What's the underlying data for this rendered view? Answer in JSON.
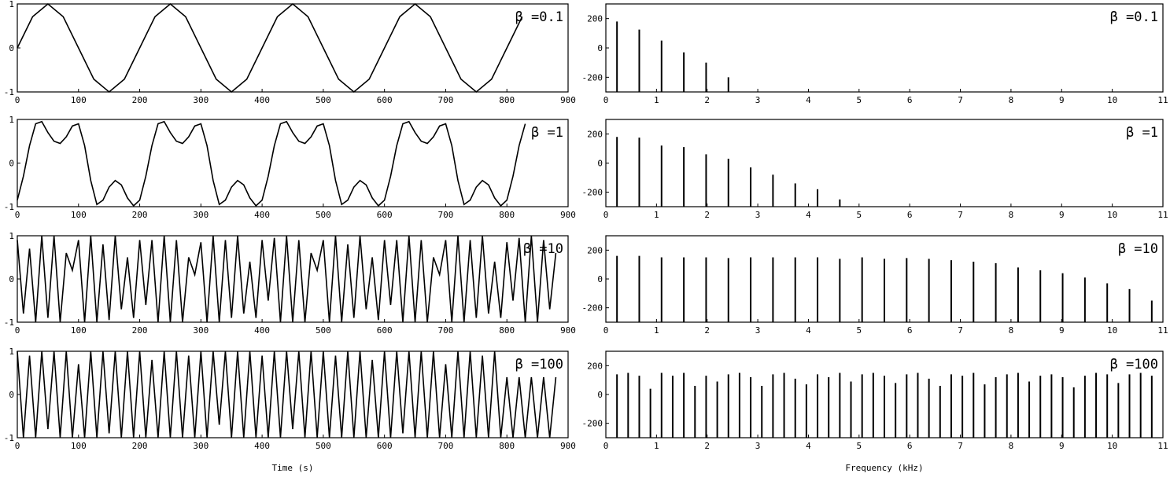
{
  "chart_data": [
    {
      "type": "line",
      "annotation": "β =0.1",
      "color": "#000000",
      "x": [
        0,
        25,
        50,
        75,
        100,
        125,
        150,
        175,
        200,
        225,
        250,
        275,
        300,
        325,
        350,
        375,
        400,
        425,
        450,
        475,
        500,
        525,
        550,
        575,
        600,
        625,
        650,
        675,
        700,
        725,
        750,
        775,
        800,
        825
      ],
      "values": [
        0,
        0.71,
        1,
        0.71,
        0,
        -0.71,
        -1,
        -0.71,
        0,
        0.71,
        1,
        0.71,
        0,
        -0.71,
        -1,
        -0.71,
        0,
        0.71,
        1,
        0.71,
        0,
        -0.71,
        -1,
        -0.71,
        0,
        0.71,
        1,
        0.71,
        0,
        -0.71,
        -1,
        -0.71,
        0,
        0.71
      ],
      "xlim": [
        0,
        900
      ],
      "ylim": [
        -1,
        1
      ],
      "xticks": [
        0,
        100,
        200,
        300,
        400,
        500,
        600,
        700,
        800,
        900
      ],
      "yticks": [
        -1,
        0,
        1
      ]
    },
    {
      "type": "line",
      "annotation": "β =1",
      "color": "#000000",
      "x": [
        0,
        10,
        20,
        30,
        40,
        50,
        60,
        70,
        80,
        90,
        100,
        110,
        120,
        130,
        140,
        150,
        160,
        170,
        180,
        190,
        200,
        210,
        220,
        230,
        240,
        250,
        260,
        270,
        280,
        290,
        300,
        310,
        320,
        330,
        340,
        350,
        360,
        370,
        380,
        390,
        400,
        410,
        420,
        430,
        440,
        450,
        460,
        470,
        480,
        490,
        500,
        510,
        520,
        530,
        540,
        550,
        560,
        570,
        580,
        590,
        600,
        610,
        620,
        630,
        640,
        650,
        660,
        670,
        680,
        690,
        700,
        710,
        720,
        730,
        740,
        750,
        760,
        770,
        780,
        790,
        800,
        810,
        820,
        830
      ],
      "values": [
        -0.85,
        -0.3,
        0.4,
        0.9,
        0.95,
        0.7,
        0.5,
        0.45,
        0.6,
        0.85,
        0.9,
        0.4,
        -0.4,
        -0.95,
        -0.85,
        -0.55,
        -0.4,
        -0.5,
        -0.8,
        -0.98,
        -0.85,
        -0.3,
        0.4,
        0.9,
        0.95,
        0.7,
        0.5,
        0.45,
        0.6,
        0.85,
        0.9,
        0.4,
        -0.4,
        -0.95,
        -0.85,
        -0.55,
        -0.4,
        -0.5,
        -0.8,
        -0.98,
        -0.85,
        -0.3,
        0.4,
        0.9,
        0.95,
        0.7,
        0.5,
        0.45,
        0.6,
        0.85,
        0.9,
        0.4,
        -0.4,
        -0.95,
        -0.85,
        -0.55,
        -0.4,
        -0.5,
        -0.8,
        -0.98,
        -0.85,
        -0.3,
        0.4,
        0.9,
        0.95,
        0.7,
        0.5,
        0.45,
        0.6,
        0.85,
        0.9,
        0.4,
        -0.4,
        -0.95,
        -0.85,
        -0.55,
        -0.4,
        -0.5,
        -0.8,
        -0.98,
        -0.85,
        -0.3,
        0.4,
        0.9
      ],
      "xlim": [
        0,
        900
      ],
      "ylim": [
        -1,
        1
      ],
      "xticks": [
        0,
        100,
        200,
        300,
        400,
        500,
        600,
        700,
        800,
        900
      ],
      "yticks": [
        -1,
        0,
        1
      ]
    },
    {
      "type": "line",
      "annotation": "β =10",
      "color": "#000000",
      "x": [
        0,
        10,
        20,
        30,
        40,
        50,
        60,
        70,
        80,
        90,
        100,
        110,
        120,
        130,
        140,
        150,
        160,
        170,
        180,
        190,
        200,
        210,
        220,
        230,
        240,
        250,
        260,
        270,
        280,
        290,
        300,
        310,
        320,
        330,
        340,
        350,
        360,
        370,
        380,
        390,
        400,
        410,
        420,
        430,
        440,
        450,
        460,
        470,
        480,
        490,
        500,
        510,
        520,
        530,
        540,
        550,
        560,
        570,
        580,
        590,
        600,
        610,
        620,
        630,
        640,
        650,
        660,
        670,
        680,
        690,
        700,
        710,
        720,
        730,
        740,
        750,
        760,
        770,
        780,
        790,
        800,
        810,
        820,
        830,
        840,
        850,
        860,
        870,
        880
      ],
      "values": [
        0.9,
        -0.8,
        0.7,
        -1,
        1,
        -0.9,
        1,
        -1,
        0.6,
        0.2,
        0.9,
        -1,
        1,
        -1,
        0.8,
        -0.95,
        1,
        -0.7,
        0.5,
        -0.9,
        0.9,
        -0.6,
        0.9,
        -1,
        1,
        -1,
        0.9,
        -1,
        0.5,
        0.1,
        0.85,
        -1,
        1,
        -1,
        0.9,
        -0.9,
        1,
        -0.8,
        0.4,
        -0.9,
        0.9,
        -0.5,
        0.95,
        -1,
        1,
        -1,
        0.9,
        -1,
        0.6,
        0.2,
        0.9,
        -1,
        1,
        -1,
        0.8,
        -0.9,
        1,
        -0.7,
        0.5,
        -0.95,
        0.9,
        -0.6,
        0.9,
        -1,
        1,
        -1,
        0.9,
        -1,
        0.5,
        0.1,
        0.9,
        -1,
        1,
        -1,
        0.9,
        -0.9,
        1,
        -0.8,
        0.4,
        -0.9,
        0.85,
        -0.5,
        0.95,
        -1,
        1,
        -1,
        0.9,
        -0.7,
        0.6
      ],
      "xlim": [
        0,
        900
      ],
      "ylim": [
        -1,
        1
      ],
      "xticks": [
        0,
        100,
        200,
        300,
        400,
        500,
        600,
        700,
        800,
        900
      ],
      "yticks": [
        -1,
        0,
        1
      ]
    },
    {
      "type": "line",
      "annotation": "β =100",
      "color": "#000000",
      "x": [
        0,
        10,
        20,
        30,
        40,
        50,
        60,
        70,
        80,
        90,
        100,
        110,
        120,
        130,
        140,
        150,
        160,
        170,
        180,
        190,
        200,
        210,
        220,
        230,
        240,
        250,
        260,
        270,
        280,
        290,
        300,
        310,
        320,
        330,
        340,
        350,
        360,
        370,
        380,
        390,
        400,
        410,
        420,
        430,
        440,
        450,
        460,
        470,
        480,
        490,
        500,
        510,
        520,
        530,
        540,
        550,
        560,
        570,
        580,
        590,
        600,
        610,
        620,
        630,
        640,
        650,
        660,
        670,
        680,
        690,
        700,
        710,
        720,
        730,
        740,
        750,
        760,
        770,
        780,
        790,
        800,
        810,
        820,
        830,
        840,
        850,
        860,
        870,
        880
      ],
      "values": [
        1,
        -1,
        0.9,
        -1,
        1,
        -0.8,
        1,
        -1,
        1,
        -1,
        0.7,
        -1,
        1,
        -1,
        1,
        -0.9,
        1,
        -1,
        1,
        -1,
        1,
        -1,
        0.8,
        -1,
        1,
        -1,
        1,
        -1,
        0.9,
        -1,
        1,
        -1,
        1,
        -0.7,
        1,
        -1,
        1,
        -1,
        1,
        -1,
        0.9,
        -1,
        1,
        -1,
        1,
        -0.8,
        1,
        -1,
        1,
        -1,
        1,
        -1,
        0.9,
        -1,
        1,
        -1,
        1,
        -1,
        0.8,
        -1,
        1,
        -1,
        1,
        -0.9,
        1,
        -1,
        1,
        -1,
        1,
        -1,
        0.7,
        -1,
        1,
        -1,
        1,
        -1,
        0.9,
        -1,
        1,
        -1,
        0.4,
        -1,
        0.4,
        -1,
        0.4,
        -1,
        0.4,
        -1,
        0.4
      ],
      "xlim": [
        0,
        900
      ],
      "ylim": [
        -1,
        1
      ],
      "xticks": [
        0,
        100,
        200,
        300,
        400,
        500,
        600,
        700,
        800,
        900
      ],
      "yticks": [
        -1,
        0,
        1
      ],
      "xlabel": "Time (s)"
    },
    {
      "type": "stem",
      "annotation": "β =0.1",
      "color": "#000000",
      "x": [
        0.22,
        0.66,
        1.1,
        1.54,
        1.98,
        2.42
      ],
      "values": [
        180,
        125,
        50,
        -30,
        -100,
        -200
      ],
      "xlim": [
        0,
        11
      ],
      "ylim": [
        -300,
        300
      ],
      "xticks": [
        0,
        1,
        2,
        3,
        4,
        5,
        6,
        7,
        8,
        9,
        10,
        11
      ],
      "yticks": [
        -200,
        0,
        200
      ]
    },
    {
      "type": "stem",
      "annotation": "β =1",
      "color": "#000000",
      "x": [
        0.22,
        0.66,
        1.1,
        1.54,
        1.98,
        2.42,
        2.86,
        3.3,
        3.74,
        4.18,
        4.62
      ],
      "values": [
        180,
        175,
        120,
        110,
        60,
        30,
        -30,
        -80,
        -140,
        -180,
        -250
      ],
      "xlim": [
        0,
        11
      ],
      "ylim": [
        -300,
        300
      ],
      "xticks": [
        0,
        1,
        2,
        3,
        4,
        5,
        6,
        7,
        8,
        9,
        10,
        11
      ],
      "yticks": [
        -200,
        0,
        200
      ]
    },
    {
      "type": "stem",
      "annotation": "β =10",
      "color": "#000000",
      "x": [
        0.22,
        0.66,
        1.1,
        1.54,
        1.98,
        2.42,
        2.86,
        3.3,
        3.74,
        4.18,
        4.62,
        5.06,
        5.5,
        5.94,
        6.38,
        6.82,
        7.26,
        7.7,
        8.14,
        8.58,
        9.02,
        9.46,
        9.9,
        10.34,
        10.78
      ],
      "values": [
        160,
        160,
        150,
        150,
        150,
        145,
        150,
        150,
        150,
        150,
        140,
        150,
        140,
        145,
        140,
        130,
        120,
        110,
        80,
        60,
        40,
        10,
        -30,
        -70,
        -150
      ],
      "xlim": [
        0,
        11
      ],
      "ylim": [
        -300,
        300
      ],
      "xticks": [
        0,
        1,
        2,
        3,
        4,
        5,
        6,
        7,
        8,
        9,
        10,
        11
      ],
      "yticks": [
        -200,
        0,
        200
      ]
    },
    {
      "type": "stem",
      "annotation": "β =100",
      "color": "#000000",
      "x": [
        0.22,
        0.44,
        0.66,
        0.88,
        1.1,
        1.32,
        1.54,
        1.76,
        1.98,
        2.2,
        2.42,
        2.64,
        2.86,
        3.08,
        3.3,
        3.52,
        3.74,
        3.96,
        4.18,
        4.4,
        4.62,
        4.84,
        5.06,
        5.28,
        5.5,
        5.72,
        5.94,
        6.16,
        6.38,
        6.6,
        6.82,
        7.04,
        7.26,
        7.48,
        7.7,
        7.92,
        8.14,
        8.36,
        8.58,
        8.8,
        9.02,
        9.24,
        9.46,
        9.68,
        9.9,
        10.12,
        10.34,
        10.56,
        10.78
      ],
      "values": [
        140,
        150,
        130,
        40,
        150,
        130,
        150,
        60,
        130,
        90,
        140,
        150,
        120,
        60,
        140,
        150,
        110,
        70,
        140,
        120,
        150,
        90,
        140,
        150,
        130,
        80,
        140,
        150,
        110,
        60,
        140,
        130,
        150,
        70,
        120,
        140,
        150,
        90,
        130,
        140,
        120,
        50,
        130,
        150,
        140,
        80,
        140,
        150,
        130
      ],
      "xlim": [
        0,
        11
      ],
      "ylim": [
        -300,
        300
      ],
      "xticks": [
        0,
        1,
        2,
        3,
        4,
        5,
        6,
        7,
        8,
        9,
        10,
        11
      ],
      "yticks": [
        -200,
        0,
        200
      ],
      "xlabel": "Frequency (kHz)"
    }
  ]
}
